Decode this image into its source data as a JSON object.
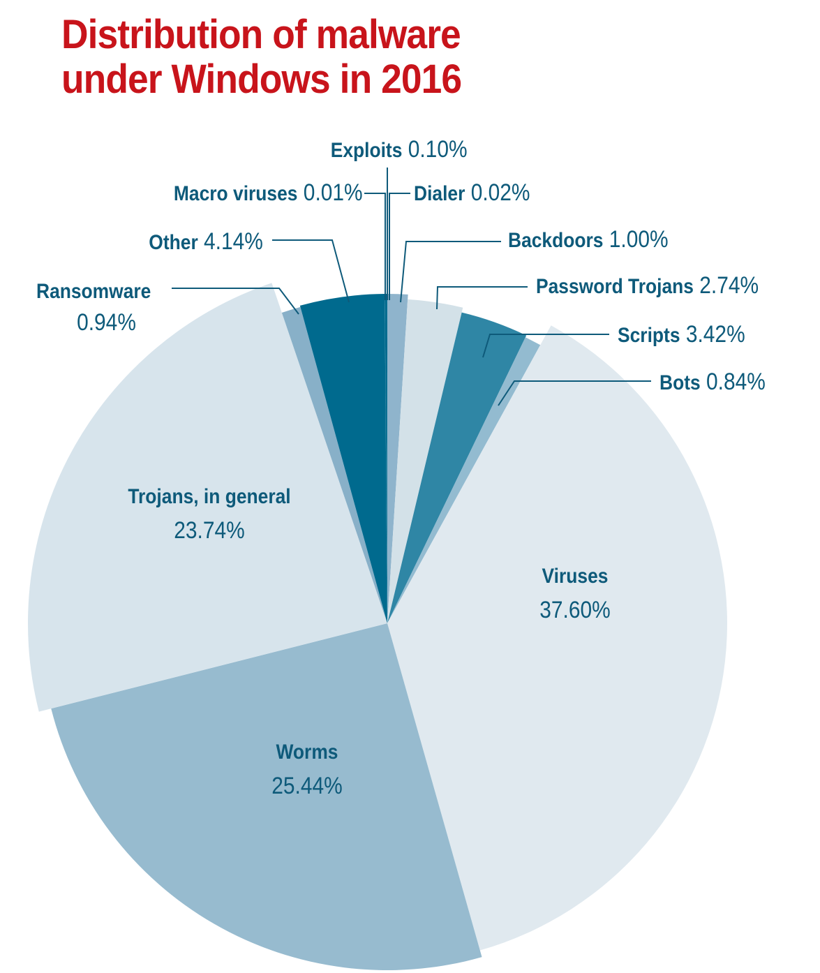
{
  "title": "Distribution of malware under Windows in 2016",
  "chart_data": {
    "type": "pie",
    "title": "Distribution of malware under Windows in 2016",
    "slices": [
      {
        "label": "Backdoors",
        "value": 1.0,
        "display": "1.00%",
        "color": "#8fb4cc"
      },
      {
        "label": "Password Trojans",
        "value": 2.74,
        "display": "2.74%",
        "color": "#d3e1e8"
      },
      {
        "label": "Scripts",
        "value": 3.42,
        "display": "3.42%",
        "color": "#2f86a5"
      },
      {
        "label": "Bots",
        "value": 0.84,
        "display": "0.84%",
        "color": "#93bbd0"
      },
      {
        "label": "Viruses",
        "value": 37.6,
        "display": "37.60%",
        "color": "#e0e9ef"
      },
      {
        "label": "Worms",
        "value": 25.44,
        "display": "25.44%",
        "color": "#97bbcf"
      },
      {
        "label": "Trojans, in general",
        "value": 23.74,
        "display": "23.74%",
        "color": "#d7e4ec"
      },
      {
        "label": "Ransomware",
        "value": 0.94,
        "display": "0.94%",
        "color": "#88b0c8"
      },
      {
        "label": "Other",
        "value": 4.14,
        "display": "4.14%",
        "color": "#006a8e"
      },
      {
        "label": "Macro viruses",
        "value": 0.01,
        "display": "0.01%",
        "color": "#006a8e"
      },
      {
        "label": "Exploits",
        "value": 0.1,
        "display": "0.10%",
        "color": "#006a8e"
      },
      {
        "label": "Dialer",
        "value": 0.02,
        "display": "0.02%",
        "color": "#006a8e"
      }
    ],
    "start": "top, clockwise",
    "label_color": "#0e5a7a",
    "title_color": "#c8141b"
  }
}
